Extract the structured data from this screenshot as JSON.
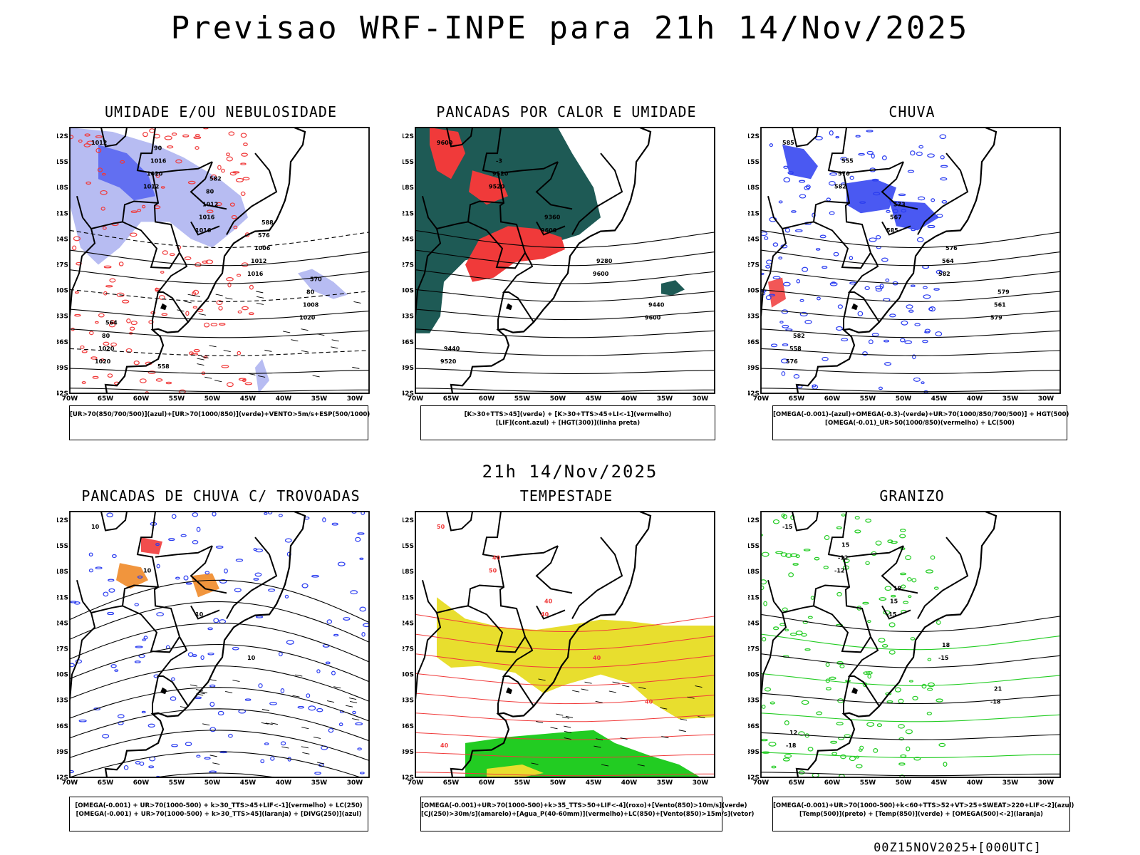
{
  "title": "Previsao WRF-INPE  para 21h 14/Nov/2025",
  "mid_title": "21h 14/Nov/2025",
  "footer_stamp": "00Z15NOV2025+[000UTC]",
  "axes": {
    "lat_labels": [
      "12S",
      "15S",
      "18S",
      "21S",
      "24S",
      "27S",
      "30S",
      "33S",
      "36S",
      "39S",
      "42S"
    ],
    "lon_labels": [
      "70W",
      "65W",
      "60W",
      "55W",
      "50W",
      "45W",
      "40W",
      "35W",
      "30W"
    ]
  },
  "colors": {
    "light_blue": "#aab0f0",
    "blue": "#2a3cf0",
    "green": "#22cc22",
    "red": "#f03a3a",
    "dark_teal": "#1e5a55",
    "yellow": "#e8de2e",
    "orange": "#f08a28"
  },
  "panels": [
    {
      "title": "UMIDADE E/OU NEBULOSIDADE",
      "caption": [
        "[UR>70(850/700/500)](azul)+[UR>70(1000/850)](verde)+VENTO>5m/s+ESP(500/1000)"
      ],
      "contour_labels": [
        "1012",
        "1012",
        "1016",
        "1016",
        "1020",
        "1020",
        "1020",
        "1016",
        "1012",
        "1008",
        "1020",
        "1016",
        "1012",
        "1006",
        "80",
        "80",
        "90",
        "80",
        "576",
        "570",
        "564",
        "558",
        "582",
        "588"
      ]
    },
    {
      "title": "PANCADAS POR CALOR E UMIDADE",
      "caption": [
        "[K>30+TTS>45](verde) + [K>30+TTS>45+LI<-1](vermelho)",
        "[LIF](cont.azul) + [HGT(300)](linha preta)"
      ],
      "contour_labels": [
        "9600",
        "9520",
        "9600",
        "9600",
        "9600",
        "9520",
        "9520",
        "9360",
        "9280",
        "9440",
        "9440",
        "-3"
      ]
    },
    {
      "title": "CHUVA",
      "caption": [
        "[OMEGA(-0.001)-(azul)+OMEGA(-0.3)-(verde)+UR>70(1000/850/700/500)] + HGT(500)",
        "[OMEGA(-0.01)_UR>50(1000/850)(vermelho) + LC(500)"
      ],
      "contour_labels": [
        "585",
        "582",
        "585",
        "582",
        "579",
        "576",
        "570",
        "567",
        "564",
        "561",
        "558",
        "555",
        "573",
        "576",
        "579",
        "582"
      ]
    },
    {
      "title": "PANCADAS DE CHUVA C/ TROVOADAS",
      "caption": [
        "[OMEGA(-0.001) + UR>70(1000-500) + k>30_TTS>45+LIF<-1](vermelho) + LC(250)",
        "[OMEGA(-0.001) + UR>70(1000-500) + k>30_TTS>45](laranja) + [DIVG(250)](azul)"
      ],
      "contour_labels": [
        "10",
        "10",
        "10",
        "10"
      ]
    },
    {
      "title": "TEMPESTADE",
      "caption": [
        "[OMEGA(-0.001)+UR>70(1000-500)+k>35_TTS>50+LIF<-4](roxo)+[Vento(850)>10m/s](verde)",
        "[CJ(250)>30m/s](amarelo)+[Agua_P(40-60mm)](vermelho)+LC(850)+[Vento(850)>15m/s](vetor)"
      ],
      "contour_labels": [
        "50",
        "50",
        "40",
        "40",
        "40",
        "40",
        "40",
        "40"
      ]
    },
    {
      "title": "GRANIZO",
      "caption": [
        "[OMEGA(-0.001)+UR>70(1000-500)+k<60+TTS>52+VT>25+SWEAT>220+LIF<-2](azul)",
        "[Temp(500)](preto) + [Temp(850)](verde) + [OMEGA(500)<-2](laranja)"
      ],
      "contour_labels": [
        "-15",
        "-12",
        "-15",
        "-15",
        "-18",
        "-18",
        "-12",
        "15",
        "18",
        "21",
        "12",
        "15",
        "18"
      ]
    }
  ]
}
